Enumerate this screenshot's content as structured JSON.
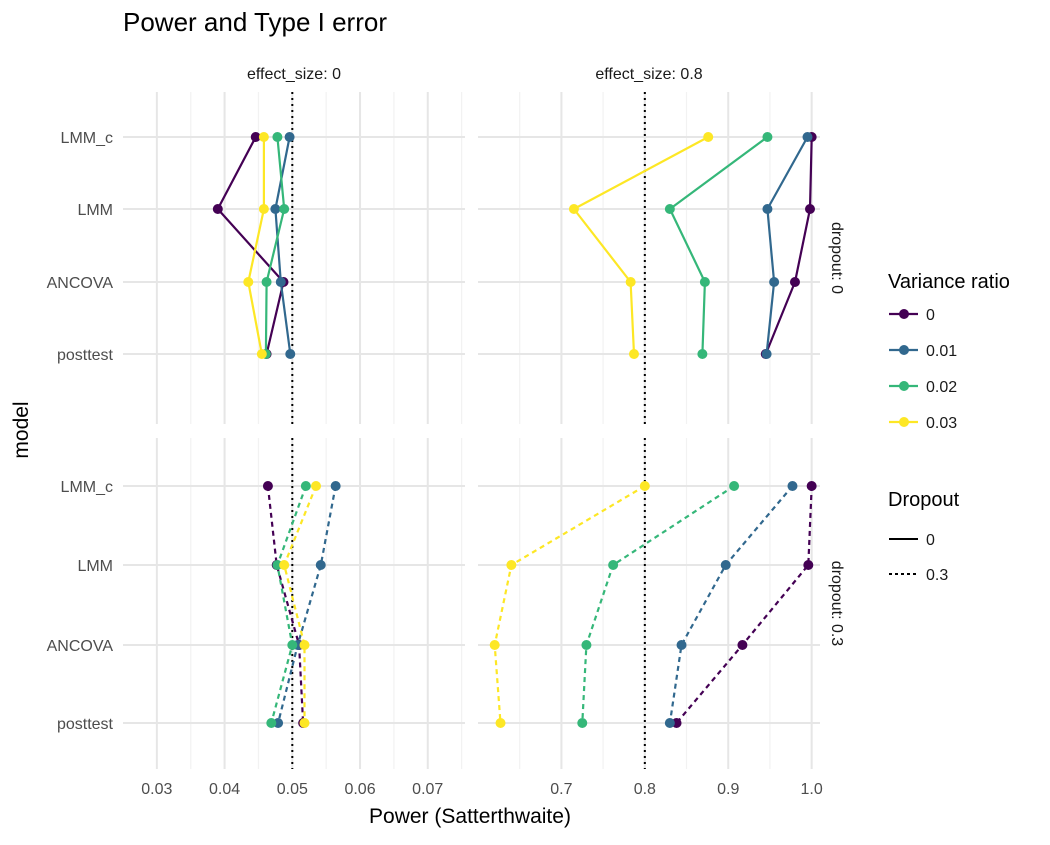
{
  "chart_data": {
    "type": "line",
    "title": "Power and Type I error",
    "xlabel": "Power (Satterthwaite)",
    "ylabel": "model",
    "categories": [
      "LMM_c",
      "LMM",
      "ANCOVA",
      "posttest"
    ],
    "grid": true,
    "reference_lines": [
      {
        "panel": "effect_size: 0",
        "x": 0.05,
        "style": "dotted"
      },
      {
        "panel": "effect_size: 0.8",
        "x": 0.8,
        "style": "dotted"
      }
    ],
    "facets": {
      "columns": [
        "effect_size: 0",
        "effect_size: 0.8"
      ],
      "rows": [
        "dropout: 0",
        "dropout: 0.3"
      ]
    },
    "axes": {
      "effect_size: 0": {
        "xlim": [
          0.025,
          0.0755
        ],
        "ticks": [
          "0.03",
          "0.04",
          "0.05",
          "0.06",
          "0.07"
        ],
        "tick_values": [
          0.03,
          0.04,
          0.05,
          0.06,
          0.07
        ]
      },
      "effect_size: 0.8": {
        "xlim": [
          0.6,
          1.01
        ],
        "ticks": [
          "0.7",
          "0.8",
          "0.9",
          "1.0"
        ],
        "tick_values": [
          0.7,
          0.8,
          0.9,
          1.0
        ]
      }
    },
    "colors": {
      "0": "#440154",
      "0.01": "#31688e",
      "0.02": "#35b779",
      "0.03": "#fde725"
    },
    "legend": {
      "placement": "right",
      "variance_title": "Variance ratio",
      "variance_items": [
        "0",
        "0.01",
        "0.02",
        "0.03"
      ],
      "dropout_title": "Dropout",
      "dropout_items": [
        {
          "label": "0",
          "style": "solid"
        },
        {
          "label": "0.3",
          "style": "dashed"
        }
      ]
    },
    "series": [
      {
        "panel": [
          "effect_size: 0",
          "dropout: 0"
        ],
        "name": "0",
        "x": [
          0.0446,
          0.039,
          0.0487,
          0.0462
        ]
      },
      {
        "panel": [
          "effect_size: 0",
          "dropout: 0"
        ],
        "name": "0.01",
        "x": [
          0.0496,
          0.0475,
          0.0483,
          0.0497
        ]
      },
      {
        "panel": [
          "effect_size: 0",
          "dropout: 0"
        ],
        "name": "0.02",
        "x": [
          0.0478,
          0.0488,
          0.0462,
          0.0461
        ]
      },
      {
        "panel": [
          "effect_size: 0",
          "dropout: 0"
        ],
        "name": "0.03",
        "x": [
          0.0458,
          0.0458,
          0.0435,
          0.0455
        ]
      },
      {
        "panel": [
          "effect_size: 0.8",
          "dropout: 0"
        ],
        "name": "0",
        "x": [
          1.0,
          0.998,
          0.98,
          0.945
        ]
      },
      {
        "panel": [
          "effect_size: 0.8",
          "dropout: 0"
        ],
        "name": "0.01",
        "x": [
          0.995,
          0.947,
          0.955,
          0.946
        ]
      },
      {
        "panel": [
          "effect_size: 0.8",
          "dropout: 0"
        ],
        "name": "0.02",
        "x": [
          0.947,
          0.83,
          0.872,
          0.869
        ]
      },
      {
        "panel": [
          "effect_size: 0.8",
          "dropout: 0"
        ],
        "name": "0.03",
        "x": [
          0.876,
          0.715,
          0.783,
          0.787
        ]
      },
      {
        "panel": [
          "effect_size: 0",
          "dropout: 0.3"
        ],
        "name": "0",
        "x": [
          0.0464,
          0.0477,
          0.051,
          0.0516
        ]
      },
      {
        "panel": [
          "effect_size: 0",
          "dropout: 0.3"
        ],
        "name": "0.01",
        "x": [
          0.0564,
          0.0542,
          0.0508,
          0.0479
        ]
      },
      {
        "panel": [
          "effect_size: 0",
          "dropout: 0.3"
        ],
        "name": "0.02",
        "x": [
          0.052,
          0.0478,
          0.05,
          0.0469
        ]
      },
      {
        "panel": [
          "effect_size: 0",
          "dropout: 0.3"
        ],
        "name": "0.03",
        "x": [
          0.0535,
          0.0488,
          0.0518,
          0.0518
        ]
      },
      {
        "panel": [
          "effect_size: 0.8",
          "dropout: 0.3"
        ],
        "name": "0",
        "x": [
          1.0,
          0.996,
          0.917,
          0.838
        ]
      },
      {
        "panel": [
          "effect_size: 0.8",
          "dropout: 0.3"
        ],
        "name": "0.01",
        "x": [
          0.977,
          0.897,
          0.844,
          0.83
        ]
      },
      {
        "panel": [
          "effect_size: 0.8",
          "dropout: 0.3"
        ],
        "name": "0.02",
        "x": [
          0.907,
          0.762,
          0.73,
          0.725
        ]
      },
      {
        "panel": [
          "effect_size: 0.8",
          "dropout: 0.3"
        ],
        "name": "0.03",
        "x": [
          0.8,
          0.64,
          0.62,
          0.627
        ]
      }
    ]
  }
}
